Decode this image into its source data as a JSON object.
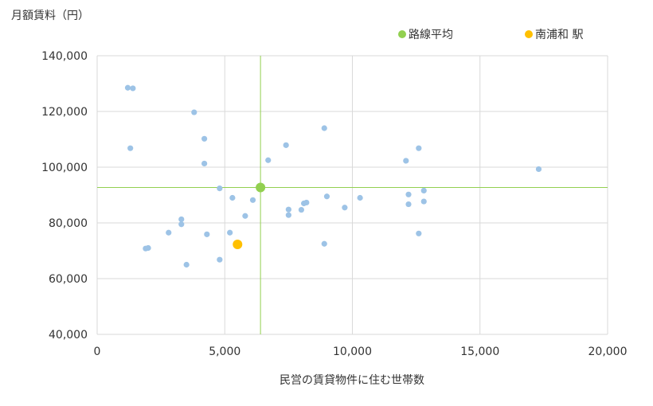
{
  "chart_data": {
    "type": "scatter",
    "ylabel": "月額賃料（円）",
    "xlabel": "民営の賃貸物件に住む世帯数",
    "xlim": [
      0,
      20000
    ],
    "ylim": [
      40000,
      140000
    ],
    "xticks": [
      0,
      5000,
      10000,
      15000,
      20000
    ],
    "yticks": [
      40000,
      60000,
      80000,
      100000,
      120000,
      140000
    ],
    "x_tick_labels": [
      "0",
      "5,000",
      "10,000",
      "15,000",
      "20,000"
    ],
    "y_tick_labels": [
      "40,000",
      "60,000",
      "80,000",
      "100,000",
      "120,000",
      "140,000"
    ],
    "grid": true,
    "legend_position": "top",
    "legend": [
      {
        "label": "路線平均",
        "color": "#92d050"
      },
      {
        "label": "南浦和 駅",
        "color": "#ffc000"
      }
    ],
    "series": [
      {
        "color": "#9dc3e6",
        "points": [
          {
            "x": 1200,
            "y": 128500
          },
          {
            "x": 1400,
            "y": 128300
          },
          {
            "x": 1300,
            "y": 106800
          },
          {
            "x": 3800,
            "y": 119700
          },
          {
            "x": 4200,
            "y": 110200
          },
          {
            "x": 4200,
            "y": 101300
          },
          {
            "x": 7400,
            "y": 107900
          },
          {
            "x": 8900,
            "y": 114000
          },
          {
            "x": 12600,
            "y": 106800
          },
          {
            "x": 12100,
            "y": 102300
          },
          {
            "x": 6700,
            "y": 102500
          },
          {
            "x": 17300,
            "y": 99300
          },
          {
            "x": 4800,
            "y": 92400
          },
          {
            "x": 5300,
            "y": 89000
          },
          {
            "x": 6100,
            "y": 88200
          },
          {
            "x": 5800,
            "y": 82500
          },
          {
            "x": 7500,
            "y": 84800
          },
          {
            "x": 7500,
            "y": 82800
          },
          {
            "x": 8000,
            "y": 84700
          },
          {
            "x": 8100,
            "y": 87000
          },
          {
            "x": 8200,
            "y": 87300
          },
          {
            "x": 9000,
            "y": 89500
          },
          {
            "x": 9700,
            "y": 85500
          },
          {
            "x": 10300,
            "y": 89000
          },
          {
            "x": 12200,
            "y": 90200
          },
          {
            "x": 12200,
            "y": 86700
          },
          {
            "x": 12800,
            "y": 91600
          },
          {
            "x": 12800,
            "y": 87700
          },
          {
            "x": 3300,
            "y": 81300
          },
          {
            "x": 3300,
            "y": 79500
          },
          {
            "x": 2800,
            "y": 76500
          },
          {
            "x": 4300,
            "y": 75900
          },
          {
            "x": 5200,
            "y": 76500
          },
          {
            "x": 12600,
            "y": 76200
          },
          {
            "x": 8900,
            "y": 72500
          },
          {
            "x": 1900,
            "y": 70800
          },
          {
            "x": 2000,
            "y": 71000
          },
          {
            "x": 3500,
            "y": 65000
          },
          {
            "x": 4800,
            "y": 66800
          }
        ]
      },
      {
        "name": "路線平均",
        "color": "#92d050",
        "points": [
          {
            "x": 6400,
            "y": 92700
          }
        ]
      },
      {
        "name": "南浦和 駅",
        "color": "#ffc000",
        "points": [
          {
            "x": 5500,
            "y": 72300
          }
        ]
      }
    ]
  }
}
